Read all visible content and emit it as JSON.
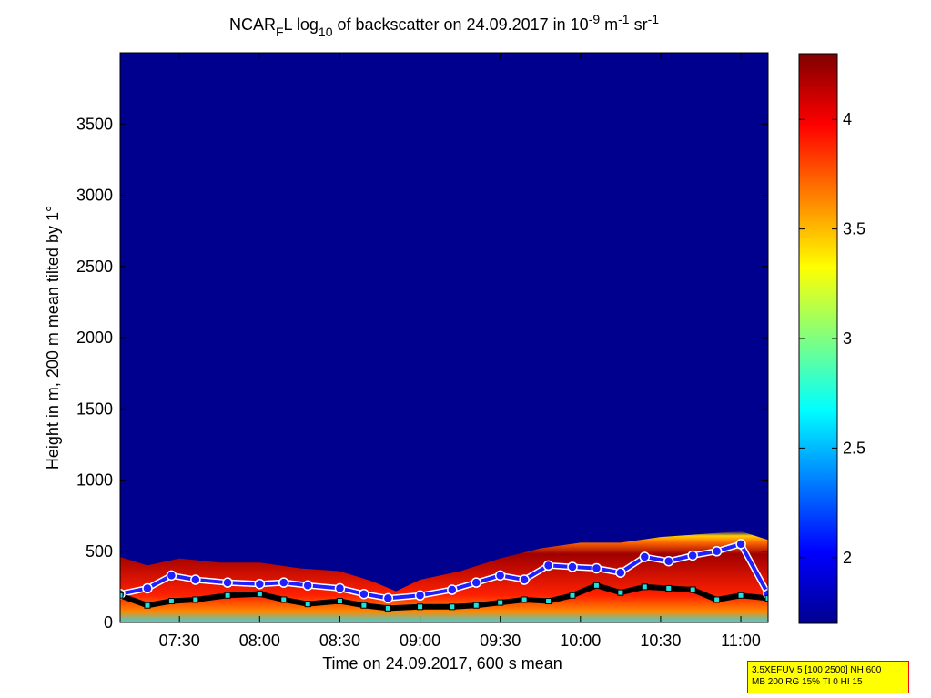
{
  "chart_data": {
    "type": "heatmap",
    "title": {
      "prefix": "NCAR",
      "sub1": "F",
      "mid1": "L log",
      "sub2": "10",
      "mid2": " of backscatter on 24.09.2017 in 10",
      "sup1": "-9",
      "mid3": " m",
      "sup2": "-1",
      "mid4": " sr",
      "sup3": "-1"
    },
    "xlabel": "Time on 24.09.2017, 600 s mean",
    "ylabel": "Height in m, 200 m mean tilted by 1°",
    "x_ticks": [
      {
        "label": "07:30",
        "hour": 7.5
      },
      {
        "label": "08:00",
        "hour": 8.0
      },
      {
        "label": "08:30",
        "hour": 8.5
      },
      {
        "label": "09:00",
        "hour": 9.0
      },
      {
        "label": "09:30",
        "hour": 9.5
      },
      {
        "label": "10:00",
        "hour": 10.0
      },
      {
        "label": "10:30",
        "hour": 10.5
      },
      {
        "label": "11:00",
        "hour": 11.0
      }
    ],
    "y_ticks": [
      0,
      500,
      1000,
      1500,
      2000,
      2500,
      3000,
      3500
    ],
    "xlim_hours": [
      7.13,
      11.17
    ],
    "ylim": [
      0,
      4000
    ],
    "colorbar": {
      "ticks": [
        2,
        2.5,
        3,
        3.5,
        4
      ],
      "labels": [
        "2",
        "2.5",
        "3",
        "3.5",
        "4"
      ],
      "range": [
        1.7,
        4.3
      ]
    },
    "layer_top_profile": [
      {
        "hour": 7.13,
        "height": 460
      },
      {
        "hour": 7.3,
        "height": 400
      },
      {
        "hour": 7.5,
        "height": 450
      },
      {
        "hour": 7.75,
        "height": 420
      },
      {
        "hour": 8.0,
        "height": 420
      },
      {
        "hour": 8.25,
        "height": 380
      },
      {
        "hour": 8.5,
        "height": 360
      },
      {
        "hour": 8.7,
        "height": 290
      },
      {
        "hour": 8.85,
        "height": 220
      },
      {
        "hour": 9.0,
        "height": 300
      },
      {
        "hour": 9.25,
        "height": 360
      },
      {
        "hour": 9.5,
        "height": 450
      },
      {
        "hour": 9.75,
        "height": 520
      },
      {
        "hour": 10.0,
        "height": 560
      },
      {
        "hour": 10.25,
        "height": 560
      },
      {
        "hour": 10.5,
        "height": 600
      },
      {
        "hour": 10.75,
        "height": 620
      },
      {
        "hour": 11.0,
        "height": 640
      },
      {
        "hour": 11.17,
        "height": 580
      }
    ],
    "detected_layers": [
      {
        "hour": 7.13,
        "upper": 200,
        "lower": 190
      },
      {
        "hour": 7.3,
        "upper": 240,
        "lower": 120
      },
      {
        "hour": 7.45,
        "upper": 330,
        "lower": 150
      },
      {
        "hour": 7.6,
        "upper": 300,
        "lower": 160
      },
      {
        "hour": 7.8,
        "upper": 280,
        "lower": 190
      },
      {
        "hour": 8.0,
        "upper": 270,
        "lower": 200
      },
      {
        "hour": 8.15,
        "upper": 280,
        "lower": 160
      },
      {
        "hour": 8.3,
        "upper": 260,
        "lower": 130
      },
      {
        "hour": 8.5,
        "upper": 240,
        "lower": 150
      },
      {
        "hour": 8.65,
        "upper": 200,
        "lower": 120
      },
      {
        "hour": 8.8,
        "upper": 170,
        "lower": 100
      },
      {
        "hour": 9.0,
        "upper": 190,
        "lower": 110
      },
      {
        "hour": 9.2,
        "upper": 230,
        "lower": 110
      },
      {
        "hour": 9.35,
        "upper": 280,
        "lower": 120
      },
      {
        "hour": 9.5,
        "upper": 330,
        "lower": 140
      },
      {
        "hour": 9.65,
        "upper": 300,
        "lower": 160
      },
      {
        "hour": 9.8,
        "upper": 400,
        "lower": 150
      },
      {
        "hour": 9.95,
        "upper": 390,
        "lower": 190
      },
      {
        "hour": 10.1,
        "upper": 380,
        "lower": 260
      },
      {
        "hour": 10.25,
        "upper": 350,
        "lower": 210
      },
      {
        "hour": 10.4,
        "upper": 460,
        "lower": 250
      },
      {
        "hour": 10.55,
        "upper": 430,
        "lower": 240
      },
      {
        "hour": 10.7,
        "upper": 470,
        "lower": 230
      },
      {
        "hour": 10.85,
        "upper": 500,
        "lower": 160
      },
      {
        "hour": 11.0,
        "upper": 550,
        "lower": 190
      },
      {
        "hour": 11.17,
        "upper": 200,
        "lower": 170
      }
    ]
  },
  "info_box": {
    "line1": "3.5XEFUV 5 [100 2500] NH 600",
    "line2": "MB 200 RG 15% TI 0 HI 15"
  }
}
